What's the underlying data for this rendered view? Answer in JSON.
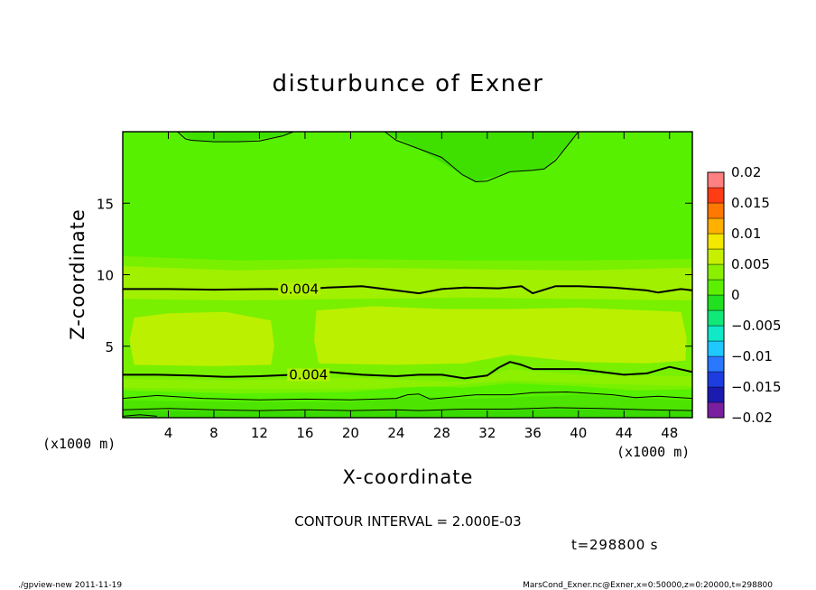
{
  "chart_data": {
    "type": "heatmap",
    "title": "disturbunce of Exner",
    "xlabel": "X-coordinate",
    "ylabel": "Z-coordinate",
    "x_unit": "(x1000 m)",
    "x_unit_right": "(x1000 m)",
    "xlim": [
      0,
      50
    ],
    "ylim": [
      0,
      20
    ],
    "x_ticks": [
      4,
      8,
      12,
      16,
      20,
      24,
      28,
      32,
      36,
      40,
      44,
      48
    ],
    "y_ticks": [
      5,
      10,
      15
    ],
    "colorbar": {
      "levels": [
        -0.02,
        -0.0175,
        -0.015,
        -0.0125,
        -0.01,
        -0.0075,
        -0.005,
        -0.0025,
        0,
        0.0025,
        0.005,
        0.0075,
        0.01,
        0.0125,
        0.015,
        0.0175,
        0.02
      ],
      "tick_values": [
        0.02,
        0.015,
        0.01,
        0.005,
        0,
        -0.005,
        -0.01,
        -0.015,
        -0.02
      ],
      "tick_labels": [
        "0.02",
        "0.015",
        "0.01",
        "0.005",
        "0",
        "−0.005",
        "−0.01",
        "−0.015",
        "−0.02"
      ],
      "colors": [
        "#7a1fa0",
        "#1b1bb0",
        "#1e3de0",
        "#2a78ff",
        "#1fc8ff",
        "#10e8c8",
        "#10e878",
        "#20e020",
        "#5cf000",
        "#8af000",
        "#c6f000",
        "#f2e800",
        "#ffb000",
        "#ff7800",
        "#ff3c14",
        "#ff8080"
      ]
    },
    "contour_labels": [
      {
        "text": "0.004",
        "x": 15.5,
        "z": 9.0
      },
      {
        "text": "0.004",
        "x": 16.3,
        "z": 3.0
      }
    ],
    "contour_lines": [
      {
        "level": 0.004,
        "width": 2,
        "points": [
          [
            0,
            9.0
          ],
          [
            4,
            9.0
          ],
          [
            8,
            8.95
          ],
          [
            13,
            9.0
          ],
          [
            15,
            8.95
          ],
          [
            18,
            9.1
          ],
          [
            21,
            9.2
          ],
          [
            23,
            9.0
          ],
          [
            25,
            8.8
          ],
          [
            26,
            8.7
          ],
          [
            28,
            9.0
          ],
          [
            30,
            9.1
          ],
          [
            33,
            9.05
          ],
          [
            35,
            9.2
          ],
          [
            36,
            8.7
          ],
          [
            38,
            9.2
          ],
          [
            40,
            9.2
          ],
          [
            43,
            9.1
          ],
          [
            46,
            8.9
          ],
          [
            47,
            8.75
          ],
          [
            49,
            9.0
          ],
          [
            50,
            8.9
          ]
        ]
      },
      {
        "level": 0.004,
        "width": 2,
        "points": [
          [
            0,
            3.0
          ],
          [
            3,
            3.0
          ],
          [
            6,
            2.95
          ],
          [
            9,
            2.85
          ],
          [
            12,
            2.9
          ],
          [
            15,
            3.0
          ],
          [
            18,
            3.2
          ],
          [
            21,
            3.0
          ],
          [
            24,
            2.9
          ],
          [
            26,
            3.0
          ],
          [
            28,
            3.0
          ],
          [
            30,
            2.75
          ],
          [
            32,
            2.95
          ],
          [
            33,
            3.5
          ],
          [
            34,
            3.9
          ],
          [
            35,
            3.7
          ],
          [
            36,
            3.4
          ],
          [
            40,
            3.4
          ],
          [
            44,
            3.0
          ],
          [
            46,
            3.1
          ],
          [
            48,
            3.55
          ],
          [
            50,
            3.2
          ]
        ]
      },
      {
        "level": 0.002,
        "width": 1,
        "points": [
          [
            0,
            1.35
          ],
          [
            3,
            1.55
          ],
          [
            7,
            1.35
          ],
          [
            12,
            1.25
          ],
          [
            16,
            1.3
          ],
          [
            20,
            1.25
          ],
          [
            24,
            1.35
          ],
          [
            25,
            1.6
          ],
          [
            26,
            1.65
          ],
          [
            27,
            1.3
          ],
          [
            31,
            1.6
          ],
          [
            34,
            1.6
          ],
          [
            36,
            1.75
          ],
          [
            39,
            1.8
          ],
          [
            43,
            1.6
          ],
          [
            45,
            1.4
          ],
          [
            47,
            1.5
          ],
          [
            50,
            1.35
          ]
        ]
      },
      {
        "level": 0.0,
        "width": 1,
        "points": [
          [
            0,
            0.55
          ],
          [
            4,
            0.65
          ],
          [
            8,
            0.55
          ],
          [
            12,
            0.5
          ],
          [
            16,
            0.55
          ],
          [
            20,
            0.5
          ],
          [
            24,
            0.55
          ],
          [
            26,
            0.5
          ],
          [
            30,
            0.6
          ],
          [
            34,
            0.6
          ],
          [
            38,
            0.7
          ],
          [
            42,
            0.65
          ],
          [
            46,
            0.55
          ],
          [
            50,
            0.5
          ]
        ]
      },
      {
        "level": -0.002,
        "width": 1,
        "points": [
          [
            0,
            0.1
          ],
          [
            1.5,
            0.2
          ],
          [
            3,
            0.1
          ]
        ]
      },
      {
        "level": 0.0,
        "width": 1,
        "points": [
          [
            4.8,
            20.0
          ],
          [
            5.5,
            19.5
          ],
          [
            6,
            19.4
          ],
          [
            8,
            19.3
          ],
          [
            10,
            19.3
          ],
          [
            12,
            19.35
          ],
          [
            14,
            19.7
          ],
          [
            15,
            20.0
          ]
        ]
      },
      {
        "level": 0.0,
        "width": 1,
        "points": [
          [
            23,
            20.0
          ],
          [
            24,
            19.4
          ],
          [
            26,
            18.8
          ],
          [
            28,
            18.2
          ],
          [
            29.8,
            17.0
          ],
          [
            31,
            16.5
          ],
          [
            32,
            16.55
          ],
          [
            34,
            17.2
          ],
          [
            36,
            17.3
          ],
          [
            37,
            17.4
          ],
          [
            38,
            18.0
          ],
          [
            39,
            19.0
          ],
          [
            40,
            20.0
          ]
        ]
      }
    ],
    "shaded_regions": [
      {
        "level": 0.0005,
        "color": "#56f000",
        "polygon": [
          [
            0,
            20
          ],
          [
            50,
            20
          ],
          [
            50,
            0
          ],
          [
            0,
            0
          ]
        ]
      },
      {
        "level": 0.0025,
        "color": "#78f000",
        "polygon": [
          [
            0,
            11.3
          ],
          [
            10,
            11.0
          ],
          [
            20,
            11.1
          ],
          [
            30,
            11.0
          ],
          [
            40,
            11.0
          ],
          [
            50,
            11.1
          ],
          [
            50,
            2.0
          ],
          [
            45,
            1.9
          ],
          [
            40,
            2.2
          ],
          [
            34,
            2.4
          ],
          [
            30,
            2.1
          ],
          [
            26,
            2.2
          ],
          [
            20,
            1.8
          ],
          [
            10,
            1.7
          ],
          [
            0,
            1.9
          ]
        ]
      },
      {
        "level": 0.0045,
        "color": "#a0f000",
        "polygon": [
          [
            0,
            10.6
          ],
          [
            10,
            10.3
          ],
          [
            20,
            10.5
          ],
          [
            30,
            10.4
          ],
          [
            40,
            10.3
          ],
          [
            50,
            10.5
          ],
          [
            50,
            8.2
          ],
          [
            40,
            8.3
          ],
          [
            30,
            8.4
          ],
          [
            20,
            8.3
          ],
          [
            10,
            8.2
          ],
          [
            0,
            8.3
          ]
        ]
      },
      {
        "level": 0.005,
        "color": "#bbf000",
        "polygon": [
          [
            1,
            7.0
          ],
          [
            4,
            7.3
          ],
          [
            9,
            7.4
          ],
          [
            13,
            6.8
          ],
          [
            13.3,
            5.0
          ],
          [
            13,
            3.7
          ],
          [
            8,
            3.6
          ],
          [
            1,
            3.7
          ],
          [
            0.6,
            5.4
          ]
        ]
      },
      {
        "level": 0.005,
        "color": "#bbf000",
        "polygon": [
          [
            17,
            7.5
          ],
          [
            22,
            7.8
          ],
          [
            28,
            7.6
          ],
          [
            34,
            7.6
          ],
          [
            40,
            7.7
          ],
          [
            46,
            7.5
          ],
          [
            49,
            7.4
          ],
          [
            49.5,
            5.6
          ],
          [
            49.4,
            4.0
          ],
          [
            46,
            3.8
          ],
          [
            40,
            3.9
          ],
          [
            34,
            4.4
          ],
          [
            30,
            3.8
          ],
          [
            24,
            3.7
          ],
          [
            17.2,
            3.8
          ],
          [
            16.8,
            5.4
          ]
        ]
      },
      {
        "level": 0.0035,
        "color": "#8cf000",
        "polygon": [
          [
            0,
            2.7
          ],
          [
            10,
            2.6
          ],
          [
            20,
            2.8
          ],
          [
            30,
            2.5
          ],
          [
            34,
            3.4
          ],
          [
            40,
            3.0
          ],
          [
            50,
            2.9
          ],
          [
            50,
            2.2
          ],
          [
            40,
            2.4
          ],
          [
            34,
            2.6
          ],
          [
            28,
            2.2
          ],
          [
            20,
            2.0
          ],
          [
            10,
            2.0
          ],
          [
            0,
            2.1
          ]
        ]
      },
      {
        "level": 0.001,
        "color": "#4ce400",
        "polygon": [
          [
            0,
            1.2
          ],
          [
            10,
            1.1
          ],
          [
            20,
            1.1
          ],
          [
            26,
            1.5
          ],
          [
            30,
            1.3
          ],
          [
            40,
            1.6
          ],
          [
            50,
            1.2
          ],
          [
            50,
            0.3
          ],
          [
            40,
            0.5
          ],
          [
            30,
            0.4
          ],
          [
            20,
            0.4
          ],
          [
            10,
            0.4
          ],
          [
            0,
            0.4
          ]
        ]
      },
      {
        "level": -0.001,
        "color": "#38da00",
        "polygon": [
          [
            0,
            0.5
          ],
          [
            10,
            0.45
          ],
          [
            20,
            0.45
          ],
          [
            30,
            0.5
          ],
          [
            40,
            0.6
          ],
          [
            50,
            0.45
          ],
          [
            50,
            0
          ],
          [
            0,
            0
          ]
        ]
      },
      {
        "level": -0.001,
        "color": "#3fe000",
        "polygon": [
          [
            5,
            20
          ],
          [
            6,
            19.4
          ],
          [
            10,
            19.3
          ],
          [
            14,
            19.7
          ],
          [
            15,
            20
          ]
        ]
      },
      {
        "level": -0.001,
        "color": "#3fe000",
        "polygon": [
          [
            23,
            20
          ],
          [
            26,
            18.8
          ],
          [
            29.8,
            17.0
          ],
          [
            31,
            16.5
          ],
          [
            34,
            17.2
          ],
          [
            37,
            17.4
          ],
          [
            39,
            19
          ],
          [
            40,
            20
          ]
        ]
      }
    ],
    "grid": false,
    "legend": "colorbar right"
  },
  "footer": {
    "contour_interval": "CONTOUR INTERVAL = 2.000E-03",
    "time": "t=298800 s",
    "program": "./gpview-new   2011-11-19",
    "source": "MarsCond_Exner.nc@Exner,x=0:50000,z=0:20000,t=298800"
  }
}
